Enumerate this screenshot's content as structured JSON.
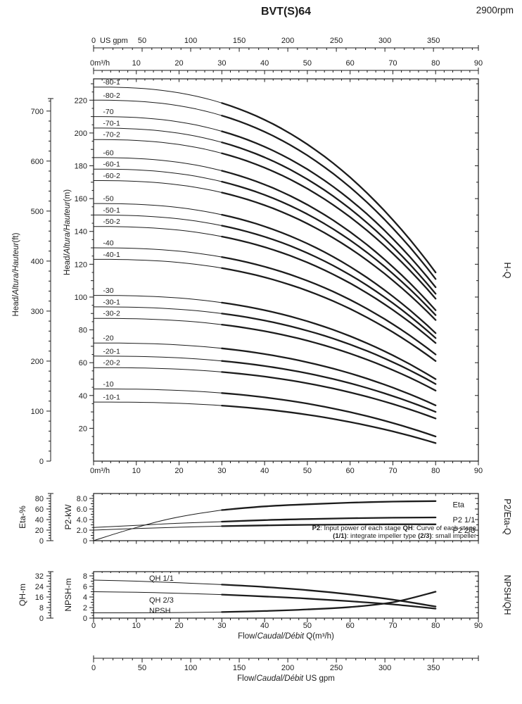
{
  "title": "BVT(S)64",
  "rpm": "2900rpm",
  "colors": {
    "ink": "#1c1c1c",
    "bg": "#ffffff"
  },
  "top_axes": {
    "usgpm": {
      "unit": "US gpm",
      "tick_labels": [
        0,
        50,
        100,
        150,
        200,
        250,
        300,
        350
      ]
    },
    "m3h": {
      "zero_label": "0m³/h",
      "tick_labels": [
        10,
        20,
        30,
        40,
        50,
        60,
        70,
        80,
        90
      ]
    }
  },
  "bottom_axis_usgpm": {
    "tick_labels": [
      0,
      50,
      100,
      150,
      200,
      250,
      300,
      350
    ],
    "title_parts": [
      {
        "t": "Flow/",
        "i": false
      },
      {
        "t": "Caudal/Débit",
        "i": true
      },
      {
        "t": "  US gpm",
        "i": false
      }
    ]
  },
  "chart_data": [
    {
      "type": "line",
      "name": "head-flow",
      "right_label": "H-Q",
      "x": {
        "unit": "m³/h",
        "zero_label": "0m³/h",
        "range": [
          0,
          90
        ],
        "ticks": [
          0,
          10,
          20,
          30,
          40,
          50,
          60,
          70,
          80,
          90
        ]
      },
      "y_inner": {
        "unit": "m",
        "title_parts": [
          {
            "t": "Head/",
            "i": false
          },
          {
            "t": "Altura/Hauteur",
            "i": true
          },
          {
            "t": "(m)",
            "i": false
          }
        ],
        "range": [
          0,
          233
        ],
        "ticks": [
          20,
          40,
          60,
          80,
          100,
          120,
          140,
          160,
          180,
          200,
          220
        ]
      },
      "y_outer": {
        "unit": "ft",
        "title_parts": [
          {
            "t": "Head/",
            "i": false
          },
          {
            "t": "Altura/Hauteur",
            "i": true
          },
          {
            "t": "(ft)",
            "i": false
          }
        ],
        "range": [
          0,
          766
        ],
        "ticks": [
          0,
          100,
          200,
          300,
          400,
          500,
          600,
          700
        ]
      },
      "bold_from_q": 30,
      "droop_exponent": 2.5,
      "q_max": 80,
      "series": [
        {
          "label": "-80-1",
          "head_at_q0_m": 228,
          "head_at_q80_m": 115
        },
        {
          "label": "-80-2",
          "head_at_q0_m": 220,
          "head_at_q80_m": 111
        },
        {
          "label": "-70",
          "head_at_q0_m": 210,
          "head_at_q80_m": 106
        },
        {
          "label": "-70-1",
          "head_at_q0_m": 203,
          "head_at_q80_m": 102
        },
        {
          "label": "-70-2",
          "head_at_q0_m": 196,
          "head_at_q80_m": 99
        },
        {
          "label": "-60",
          "head_at_q0_m": 185,
          "head_at_q80_m": 92
        },
        {
          "label": "-60-1",
          "head_at_q0_m": 178,
          "head_at_q80_m": 89
        },
        {
          "label": "-60-2",
          "head_at_q0_m": 171,
          "head_at_q80_m": 86
        },
        {
          "label": "-50",
          "head_at_q0_m": 157,
          "head_at_q80_m": 78
        },
        {
          "label": "-50-1",
          "head_at_q0_m": 150,
          "head_at_q80_m": 75
        },
        {
          "label": "-50-2",
          "head_at_q0_m": 143,
          "head_at_q80_m": 72
        },
        {
          "label": "-40",
          "head_at_q0_m": 130,
          "head_at_q80_m": 65
        },
        {
          "label": "-40-1",
          "head_at_q0_m": 123,
          "head_at_q80_m": 61
        },
        {
          "label": "-30",
          "head_at_q0_m": 101,
          "head_at_q80_m": 50
        },
        {
          "label": "-30-1",
          "head_at_q0_m": 94,
          "head_at_q80_m": 47
        },
        {
          "label": "-30-2",
          "head_at_q0_m": 87,
          "head_at_q80_m": 43
        },
        {
          "label": "-20",
          "head_at_q0_m": 72,
          "head_at_q80_m": 34
        },
        {
          "label": "-20-1",
          "head_at_q0_m": 64,
          "head_at_q80_m": 30
        },
        {
          "label": "-20-2",
          "head_at_q0_m": 57,
          "head_at_q80_m": 26
        },
        {
          "label": "-10",
          "head_at_q0_m": 44,
          "head_at_q80_m": 15
        },
        {
          "label": "-10-1",
          "head_at_q0_m": 36,
          "head_at_q80_m": 11
        }
      ]
    },
    {
      "type": "line",
      "name": "power-efficiency-flow",
      "right_label": "P2/Eta-Q",
      "y_inner": {
        "label": "P2-kW",
        "ticks": [
          0,
          2,
          4,
          6,
          8
        ],
        "tick_labels": [
          "0",
          "2.0",
          "4.0",
          "6.0",
          "8.0"
        ],
        "range": [
          0,
          8.9
        ]
      },
      "y_outer": {
        "label": "Eta-%",
        "ticks": [
          0,
          20,
          40,
          60,
          80
        ],
        "range": [
          0,
          89
        ]
      },
      "bold_from_q": 30,
      "series": [
        {
          "label": "Eta",
          "axis": "outer",
          "q": [
            0,
            5,
            10,
            15,
            20,
            25,
            30,
            40,
            50,
            60,
            70,
            80
          ],
          "v": [
            0,
            13,
            25,
            36,
            45,
            52,
            58,
            65,
            69,
            72,
            74,
            75
          ],
          "label_pos": {
            "q": 84,
            "v": 69
          }
        },
        {
          "label": "P2 1/1",
          "axis": "inner",
          "q": [
            0,
            10,
            20,
            30,
            40,
            50,
            60,
            70,
            80
          ],
          "v": [
            2.5,
            2.9,
            3.3,
            3.6,
            3.9,
            4.1,
            4.25,
            4.35,
            4.4
          ],
          "label_pos": {
            "q": 84,
            "v": 4.0
          }
        },
        {
          "label": "P2 2/3",
          "axis": "inner",
          "q": [
            0,
            10,
            20,
            30,
            40,
            50,
            60,
            70,
            80
          ],
          "v": [
            2.0,
            2.3,
            2.55,
            2.75,
            2.9,
            3.0,
            3.05,
            3.1,
            3.1
          ],
          "label_pos": {
            "q": 84,
            "v": 2.0
          }
        }
      ],
      "note_lines": [
        [
          {
            "t": "P2",
            "b": true
          },
          {
            "t": ": Input power of each stage ",
            "b": false
          },
          {
            "t": "QH",
            "b": true
          },
          {
            "t": ": Curve of each stage",
            "b": false
          }
        ],
        [
          {
            "t": "(1/1)",
            "b": true
          },
          {
            "t": ": integrate impeller type ",
            "b": false
          },
          {
            "t": "(2/3)",
            "b": true
          },
          {
            "t": ": small impeller",
            "b": false
          }
        ]
      ]
    },
    {
      "type": "line",
      "name": "npsh-qh-flow",
      "right_label": "NPSH/QH",
      "x": {
        "ticks": [
          0,
          10,
          20,
          30,
          40,
          50,
          60,
          70,
          80,
          90
        ],
        "title_parts": [
          {
            "t": "Flow/",
            "i": false
          },
          {
            "t": "Caudal/Débit",
            "i": true
          },
          {
            "t": " Q(m³/h)",
            "i": false
          }
        ]
      },
      "y_inner": {
        "label": "NPSH-m",
        "ticks": [
          0,
          2,
          4,
          6,
          8
        ],
        "range": [
          0,
          8.9
        ]
      },
      "y_outer": {
        "label": "QH-m",
        "ticks": [
          0,
          8,
          16,
          24,
          32
        ],
        "range": [
          0,
          35.6
        ]
      },
      "bold_from_q": 30,
      "series": [
        {
          "label": "QH 1/1",
          "axis": "outer",
          "q": [
            0,
            10,
            20,
            30,
            40,
            50,
            60,
            70,
            80
          ],
          "v": [
            28.8,
            28.0,
            26.8,
            25.4,
            23.6,
            21.2,
            18.0,
            14.0,
            8.8
          ],
          "label_pos": {
            "q": 13,
            "v": 30.5
          }
        },
        {
          "label": "QH 2/3",
          "axis": "outer",
          "q": [
            0,
            10,
            20,
            30,
            40,
            50,
            60,
            70,
            80
          ],
          "v": [
            20.0,
            19.6,
            18.8,
            17.8,
            16.4,
            14.8,
            12.8,
            10.4,
            7.2
          ],
          "label_pos": {
            "q": 13,
            "v": 14.0
          }
        },
        {
          "label": "NPSH",
          "axis": "inner",
          "q": [
            0,
            10,
            20,
            30,
            40,
            50,
            60,
            70,
            80
          ],
          "v": [
            1.0,
            1.0,
            1.05,
            1.15,
            1.35,
            1.65,
            2.1,
            3.0,
            5.0
          ],
          "label_pos": {
            "q": 13,
            "v": 1.45
          }
        }
      ]
    }
  ]
}
